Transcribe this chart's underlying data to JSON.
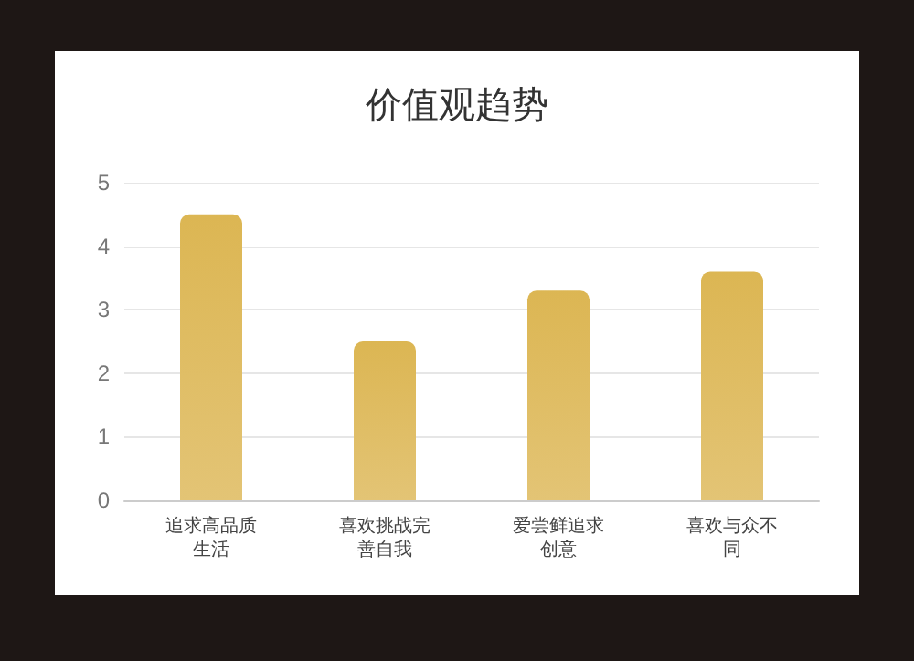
{
  "chart_data": {
    "type": "bar",
    "title": "价值观趋势",
    "categories": [
      "追求高品质生活",
      "喜欢挑战完善自我",
      "爱尝鲜追求创意",
      "喜欢与众不同"
    ],
    "values": [
      4.5,
      2.5,
      3.3,
      3.6
    ],
    "color": "#dcb653",
    "ylim": [
      0,
      5
    ],
    "yticks": [
      0,
      1,
      2,
      3,
      4,
      5
    ],
    "grid": "y"
  }
}
